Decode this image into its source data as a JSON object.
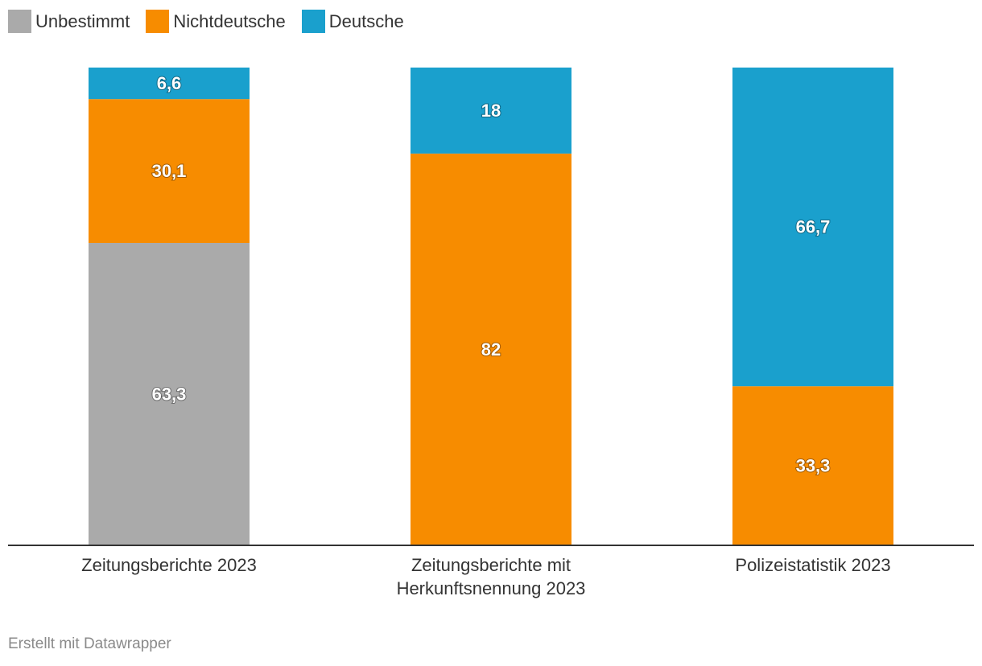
{
  "chart_data": {
    "type": "bar",
    "stacked": true,
    "categories": [
      [
        "Zeitungsberichte 2023"
      ],
      [
        "Zeitungsberichte mit",
        "Herkunftsnennung 2023"
      ],
      [
        "Polizeistatistik 2023"
      ]
    ],
    "series": [
      {
        "name": "Unbestimmt",
        "color": "#aaaaaa",
        "values": [
          63.3,
          0,
          0
        ],
        "labels": [
          "63,3",
          "",
          ""
        ]
      },
      {
        "name": "Nichtdeutsche",
        "color": "#f78c00",
        "values": [
          30.1,
          82,
          33.3
        ],
        "labels": [
          "30,1",
          "82",
          "33,3"
        ]
      },
      {
        "name": "Deutsche",
        "color": "#1aa0cd",
        "values": [
          6.6,
          18,
          66.7
        ],
        "labels": [
          "6,6",
          "18",
          "66,7"
        ]
      }
    ],
    "ylim": [
      0,
      100
    ],
    "title": "",
    "xlabel": "",
    "ylabel": ""
  },
  "legend": [
    {
      "label": "Unbestimmt",
      "color": "#aaaaaa"
    },
    {
      "label": "Nichtdeutsche",
      "color": "#f78c00"
    },
    {
      "label": "Deutsche",
      "color": "#1aa0cd"
    }
  ],
  "footer": {
    "text": "Erstellt mit Datawrapper"
  }
}
